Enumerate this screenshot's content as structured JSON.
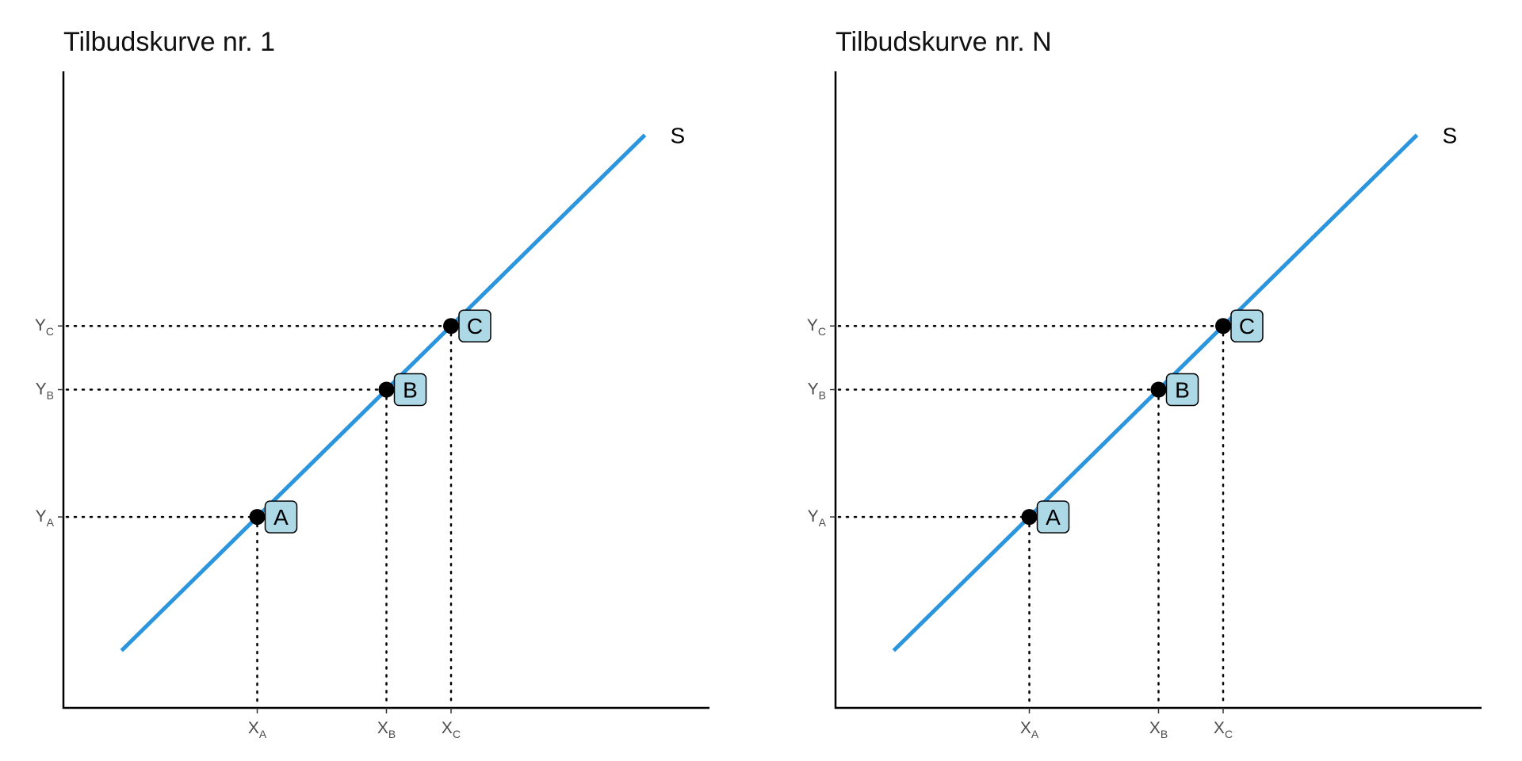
{
  "chart_data": [
    {
      "type": "line",
      "title": "Tilbudskurve nr. 1",
      "xlabel": "",
      "ylabel": "",
      "xlim": [
        0,
        10
      ],
      "ylim": [
        0,
        10
      ],
      "grid": false,
      "series": [
        {
          "name": "S",
          "color": "#2b95de",
          "x": [
            0.9,
            9.0
          ],
          "y": [
            0.9,
            9.0
          ]
        }
      ],
      "points": [
        {
          "label": "A",
          "x": 3.0,
          "y": 3.0
        },
        {
          "label": "B",
          "x": 5.0,
          "y": 5.0
        },
        {
          "label": "C",
          "x": 6.0,
          "y": 6.0
        }
      ],
      "x_ticks": [
        {
          "value": 3.0,
          "main": "X",
          "sub": "A"
        },
        {
          "value": 5.0,
          "main": "X",
          "sub": "B"
        },
        {
          "value": 6.0,
          "main": "X",
          "sub": "C"
        }
      ],
      "y_ticks": [
        {
          "value": 3.0,
          "main": "Y",
          "sub": "A"
        },
        {
          "value": 5.0,
          "main": "Y",
          "sub": "B"
        },
        {
          "value": 6.0,
          "main": "Y",
          "sub": "C"
        }
      ]
    },
    {
      "type": "line",
      "title": "Tilbudskurve nr. N",
      "xlabel": "",
      "ylabel": "",
      "xlim": [
        0,
        10
      ],
      "ylim": [
        0,
        10
      ],
      "grid": false,
      "series": [
        {
          "name": "S",
          "color": "#2b95de",
          "x": [
            0.9,
            9.0
          ],
          "y": [
            0.9,
            9.0
          ]
        }
      ],
      "points": [
        {
          "label": "A",
          "x": 3.0,
          "y": 3.0
        },
        {
          "label": "B",
          "x": 5.0,
          "y": 5.0
        },
        {
          "label": "C",
          "x": 6.0,
          "y": 6.0
        }
      ],
      "x_ticks": [
        {
          "value": 3.0,
          "main": "X",
          "sub": "A"
        },
        {
          "value": 5.0,
          "main": "X",
          "sub": "B"
        },
        {
          "value": 6.0,
          "main": "X",
          "sub": "C"
        }
      ],
      "y_ticks": [
        {
          "value": 3.0,
          "main": "Y",
          "sub": "A"
        },
        {
          "value": 5.0,
          "main": "Y",
          "sub": "B"
        },
        {
          "value": 6.0,
          "main": "Y",
          "sub": "C"
        }
      ]
    }
  ]
}
